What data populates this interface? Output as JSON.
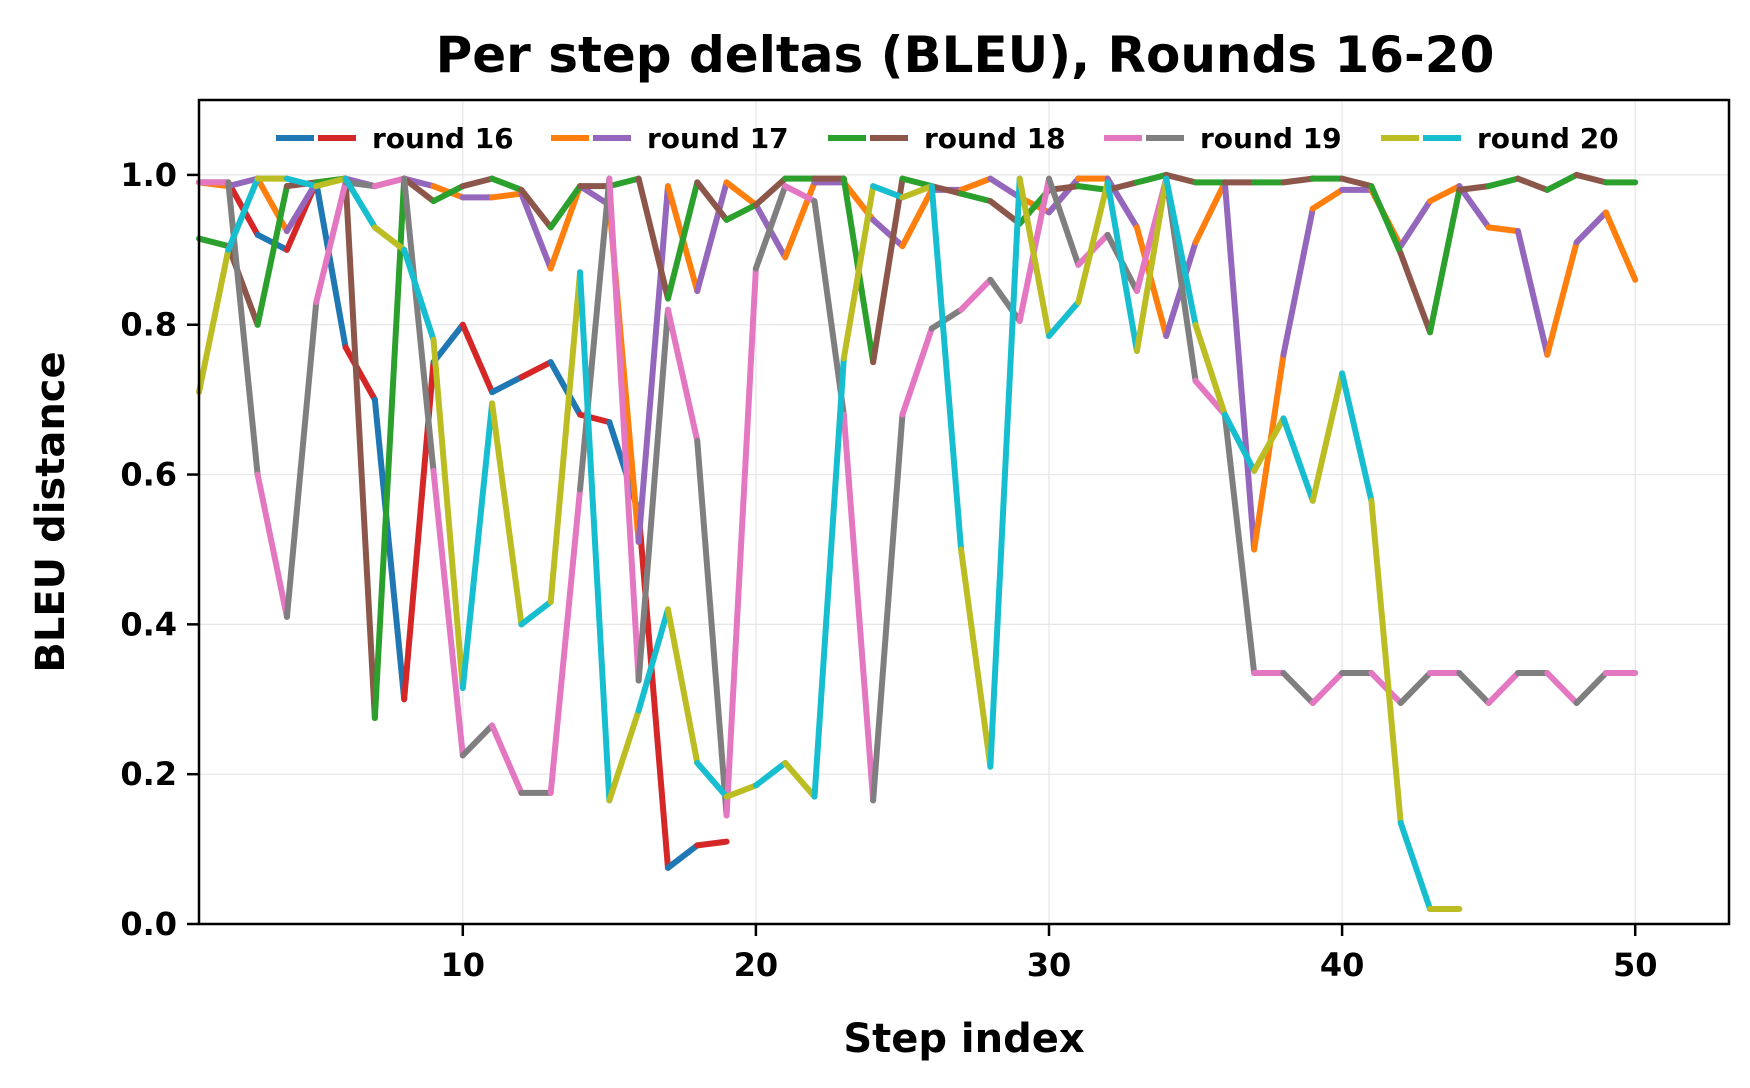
{
  "chart_data": {
    "type": "line",
    "title": "Per step deltas (BLEU), Rounds 16-20",
    "xlabel": "Step index",
    "ylabel": "BLEU distance",
    "xlim": [
      1,
      53.2
    ],
    "ylim": [
      0.0,
      1.1
    ],
    "xticks": [
      10,
      20,
      30,
      40,
      50
    ],
    "yticks": [
      0.0,
      0.2,
      0.4,
      0.6,
      0.8,
      1.0
    ],
    "xtick_labels": [
      "10",
      "20",
      "30",
      "40",
      "50"
    ],
    "ytick_labels": [
      "0.0",
      "0.2",
      "0.4",
      "0.6",
      "0.8",
      "1.0"
    ],
    "grid": true,
    "legend_position": "upper center (inside, single row)",
    "series": [
      {
        "name": "round 16",
        "colors": [
          "#1f77b4",
          "#d62728"
        ],
        "x_start": 1,
        "values": [
          0.99,
          0.99,
          0.92,
          0.9,
          0.99,
          0.77,
          0.7,
          0.3,
          0.75,
          0.8,
          0.71,
          0.73,
          0.75,
          0.68,
          0.67,
          0.55,
          0.075,
          0.105,
          0.11
        ]
      },
      {
        "name": "round 17",
        "colors": [
          "#ff7f0e",
          "#9467bd"
        ],
        "x_start": 1,
        "values": [
          0.99,
          0.985,
          0.995,
          0.925,
          0.99,
          0.995,
          0.985,
          0.995,
          0.985,
          0.97,
          0.97,
          0.975,
          0.875,
          0.985,
          0.96,
          0.51,
          0.985,
          0.845,
          0.99,
          0.96,
          0.89,
          0.99,
          0.99,
          0.94,
          0.905,
          0.98,
          0.98,
          0.995,
          0.97,
          0.95,
          0.995,
          0.995,
          0.93,
          0.785,
          0.91,
          0.99,
          0.5,
          0.76,
          0.955,
          0.98,
          0.98,
          0.905,
          0.965,
          0.985,
          0.93,
          0.925,
          0.76,
          0.91,
          0.95,
          0.86
        ]
      },
      {
        "name": "round 18",
        "colors": [
          "#2ca02c",
          "#8c564b"
        ],
        "x_start": 1,
        "values": [
          0.915,
          0.905,
          0.8,
          0.985,
          0.99,
          0.995,
          0.275,
          0.995,
          0.965,
          0.985,
          0.995,
          0.98,
          0.93,
          0.985,
          0.985,
          0.995,
          0.835,
          0.99,
          0.94,
          0.96,
          0.995,
          0.995,
          0.995,
          0.75,
          0.995,
          0.985,
          0.975,
          0.965,
          0.935,
          0.98,
          0.985,
          0.98,
          0.99,
          1.0,
          0.99,
          0.99,
          0.99,
          0.99,
          0.995,
          0.995,
          0.985,
          0.895,
          0.79,
          0.98,
          0.985,
          0.995,
          0.98,
          1.0,
          0.99,
          0.99
        ]
      },
      {
        "name": "round 19",
        "colors": [
          "#e377c2",
          "#7f7f7f"
        ],
        "x_start": 1,
        "values": [
          0.99,
          0.99,
          0.6,
          0.41,
          0.83,
          0.99,
          0.985,
          0.995,
          0.605,
          0.225,
          0.265,
          0.175,
          0.175,
          0.58,
          0.995,
          0.325,
          0.82,
          0.645,
          0.145,
          0.875,
          0.985,
          0.965,
          0.68,
          0.165,
          0.68,
          0.795,
          0.82,
          0.86,
          0.805,
          0.995,
          0.88,
          0.92,
          0.845,
          0.995,
          0.725,
          0.68,
          0.335,
          0.335,
          0.295,
          0.335,
          0.335,
          0.295,
          0.335,
          0.335,
          0.295,
          0.335,
          0.335,
          0.295,
          0.335,
          0.335
        ]
      },
      {
        "name": "round 20",
        "colors": [
          "#bcbd22",
          "#17becf"
        ],
        "x_start": 1,
        "values": [
          0.71,
          0.9,
          0.995,
          0.995,
          0.985,
          0.995,
          0.93,
          0.9,
          0.78,
          0.315,
          0.695,
          0.4,
          0.43,
          0.87,
          0.165,
          0.285,
          0.42,
          0.215,
          0.17,
          0.185,
          0.215,
          0.17,
          0.755,
          0.985,
          0.97,
          0.985,
          0.5,
          0.21,
          0.995,
          0.785,
          0.83,
          0.99,
          0.765,
          0.995,
          0.8,
          0.68,
          0.605,
          0.675,
          0.565,
          0.735,
          0.565,
          0.135,
          0.02,
          0.02
        ]
      }
    ]
  }
}
